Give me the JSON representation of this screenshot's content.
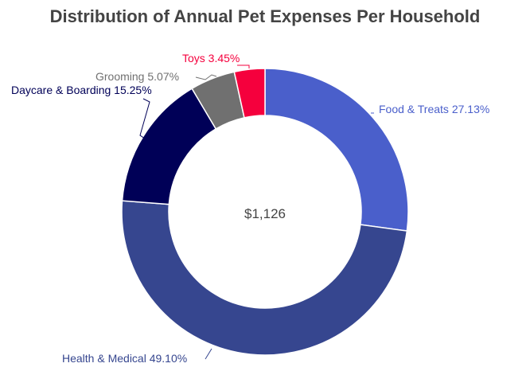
{
  "chart_data": {
    "type": "pie",
    "donut": true,
    "title": "Distribution of Annual Pet Expenses Per Household",
    "center_label": "$1,126",
    "slices": [
      {
        "label": "Food & Treats 27.13%",
        "name": "Food & Treats",
        "value": 27.13,
        "color": "#4A5FCB"
      },
      {
        "label": "Health & Medical 49.10%",
        "name": "Health & Medical",
        "value": 49.1,
        "color": "#36468F"
      },
      {
        "label": "Daycare & Boarding 15.25%",
        "name": "Daycare & Boarding",
        "value": 15.25,
        "color": "#000057"
      },
      {
        "label": "Grooming 5.07%",
        "name": "Grooming",
        "value": 5.07,
        "color": "#707070"
      },
      {
        "label": "Toys 3.45%",
        "name": "Toys",
        "value": 3.45,
        "color": "#F5003D"
      }
    ]
  }
}
